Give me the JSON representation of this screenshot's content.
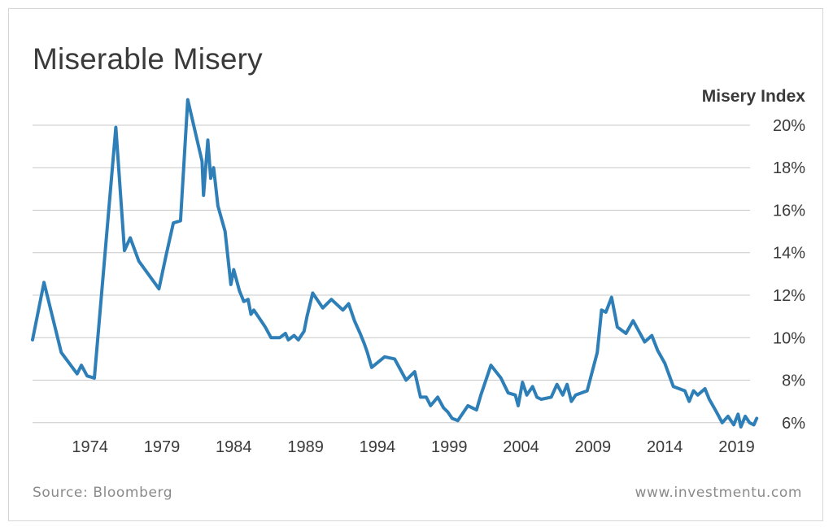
{
  "title": "Miserable Misery",
  "source": "Source: Bloomberg",
  "website": "www.investmentu.com",
  "colors": {
    "line": "#2e7fb8",
    "grid": "#c8c8c8",
    "text": "#3a3a3a"
  },
  "chart_data": {
    "type": "line",
    "title": "Miserable Misery",
    "xlabel": "",
    "ylabel": "Misery Index",
    "y_axis_position": "right",
    "grid": true,
    "xlim": [
      1970.0,
      2020.5
    ],
    "ylim": [
      5.8,
      21.3
    ],
    "x_ticks": [
      1974,
      1979,
      1984,
      1989,
      1994,
      1999,
      2004,
      2009,
      2014,
      2019
    ],
    "x_tick_labels": [
      "1974",
      "1979",
      "1984",
      "1989",
      "1994",
      "1999",
      "2004",
      "2009",
      "2014",
      "2019"
    ],
    "y_ticks": [
      6,
      8,
      10,
      12,
      14,
      16,
      18,
      20
    ],
    "y_tick_labels": [
      "6%",
      "8%",
      "10%",
      "12%",
      "14%",
      "16%",
      "18%",
      "20%"
    ],
    "series": [
      {
        "name": "",
        "x": [
          1970.0,
          1970.8,
          1972.0,
          1973.1,
          1973.4,
          1973.8,
          1974.3,
          1975.8,
          1976.4,
          1976.8,
          1977.4,
          1978.8,
          1979.3,
          1979.8,
          1980.3,
          1980.8,
          1981.8,
          1981.9,
          1982.2,
          1982.4,
          1982.6,
          1982.9,
          1983.4,
          1983.8,
          1984.0,
          1984.4,
          1984.7,
          1985.0,
          1985.2,
          1985.4,
          1985.8,
          1986.2,
          1986.6,
          1987.2,
          1987.6,
          1987.8,
          1988.2,
          1988.5,
          1988.9,
          1989.1,
          1989.5,
          1990.2,
          1990.8,
          1991.6,
          1992.0,
          1992.4,
          1992.8,
          1993.1,
          1993.3,
          1993.6,
          1994.5,
          1995.2,
          1995.6,
          1996.0,
          1996.6,
          1997.0,
          1997.4,
          1997.7,
          1998.2,
          1998.6,
          1998.9,
          1999.2,
          1999.6,
          2000.3,
          2000.9,
          2001.2,
          2001.6,
          2001.9,
          2002.6,
          2003.1,
          2003.6,
          2003.8,
          2004.1,
          2004.4,
          2004.8,
          2005.1,
          2005.4,
          2006.1,
          2006.5,
          2006.9,
          2007.2,
          2007.5,
          2007.8,
          2008.6,
          2009.3,
          2009.6,
          2009.9,
          2010.3,
          2010.7,
          2011.3,
          2011.8,
          2012.2,
          2012.6,
          2013.1,
          2013.5,
          2014.0,
          2014.6,
          2015.4,
          2015.7,
          2016.0,
          2016.3,
          2016.8,
          2017.1,
          2017.6,
          2018.0,
          2018.4,
          2018.8,
          2019.1,
          2019.3,
          2019.6,
          2019.9,
          2020.2,
          2020.4
        ],
        "y": [
          9.9,
          12.6,
          9.3,
          8.3,
          8.7,
          8.2,
          8.1,
          19.9,
          14.1,
          14.7,
          13.6,
          12.3,
          13.9,
          15.4,
          15.5,
          21.2,
          18.3,
          16.7,
          19.3,
          17.5,
          18.0,
          16.2,
          15.0,
          12.5,
          13.2,
          12.2,
          11.7,
          11.8,
          11.1,
          11.3,
          10.9,
          10.5,
          10.0,
          10.0,
          10.2,
          9.9,
          10.1,
          9.9,
          10.3,
          11.0,
          12.1,
          11.4,
          11.8,
          11.3,
          11.6,
          10.8,
          10.2,
          9.7,
          9.3,
          8.6,
          9.1,
          9.0,
          8.5,
          8.0,
          8.4,
          7.2,
          7.2,
          6.8,
          7.2,
          6.7,
          6.5,
          6.2,
          6.1,
          6.8,
          6.6,
          7.3,
          8.1,
          8.7,
          8.1,
          7.4,
          7.3,
          6.8,
          7.9,
          7.3,
          7.7,
          7.2,
          7.1,
          7.2,
          7.8,
          7.3,
          7.8,
          7.0,
          7.3,
          7.5,
          9.3,
          11.3,
          11.2,
          11.9,
          10.5,
          10.2,
          10.8,
          10.3,
          9.8,
          10.1,
          9.4,
          8.8,
          7.7,
          7.5,
          7.0,
          7.5,
          7.3,
          7.6,
          7.1,
          6.5,
          6.0,
          6.3,
          5.9,
          6.4,
          5.8,
          6.3,
          6.0,
          5.9,
          6.2
        ]
      }
    ]
  }
}
